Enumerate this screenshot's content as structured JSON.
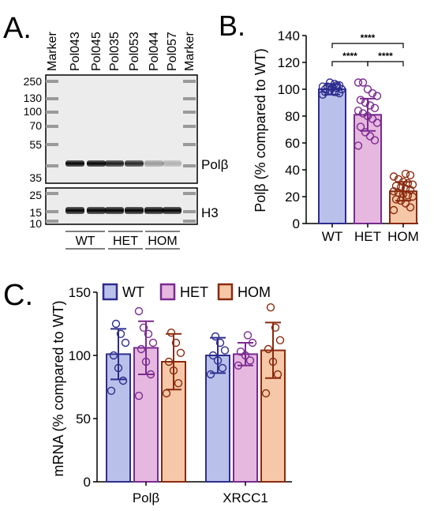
{
  "panels": {
    "a": {
      "label": "A.",
      "lanes": [
        "Marker",
        "Pol043",
        "Pol045",
        "Pol035",
        "Pol053",
        "Pol044",
        "Pol057",
        "Marker"
      ],
      "upper_ticks": [
        "250",
        "130",
        "100",
        "70",
        "55",
        "35"
      ],
      "lower_ticks": [
        "25",
        "15",
        "10"
      ],
      "upper_band_label": "Polβ",
      "lower_band_label": "H3",
      "groups": [
        "WT",
        "HET",
        "HOM"
      ],
      "polb_band_intensity": [
        1.0,
        1.0,
        0.9,
        0.85,
        0.35,
        0.25
      ],
      "h3_band_intensity": [
        1.0,
        1.0,
        1.0,
        1.0,
        1.0,
        1.0
      ]
    }
  },
  "chart_data": [
    {
      "panel_label": "B.",
      "type": "bar",
      "categories": [
        "WT",
        "HET",
        "HOM"
      ],
      "values": [
        100,
        81,
        24
      ],
      "error": [
        4,
        12,
        7
      ],
      "points": [
        [
          96,
          97,
          98,
          99,
          100,
          100,
          101,
          101,
          102,
          102,
          103,
          104,
          105,
          98,
          100,
          103
        ],
        [
          58,
          62,
          65,
          68,
          72,
          75,
          78,
          80,
          82,
          84,
          86,
          88,
          90,
          92,
          95,
          97,
          100,
          105,
          105
        ],
        [
          10,
          12,
          15,
          17,
          18,
          20,
          21,
          22,
          23,
          24,
          25,
          26,
          27,
          28,
          29,
          30,
          31,
          33,
          35,
          36,
          37
        ]
      ],
      "colors": {
        "WT": {
          "fill": "#b9c1ea",
          "stroke": "#2e2d8f"
        },
        "HET": {
          "fill": "#e6b8e0",
          "stroke": "#7a2b8f"
        },
        "HOM": {
          "fill": "#f6c8a8",
          "stroke": "#8a2a0e"
        }
      },
      "ylabel": "Polβ (% compared to WT)",
      "ylim": [
        0,
        140
      ],
      "yticks": [
        "0",
        "20",
        "40",
        "60",
        "80",
        "100",
        "120",
        "140"
      ],
      "significance": [
        {
          "from": "WT",
          "to": "HOM",
          "label": "****"
        },
        {
          "from": "WT",
          "to": "HET",
          "label": "****"
        },
        {
          "from": "HET",
          "to": "HOM",
          "label": "****"
        }
      ]
    },
    {
      "panel_label": "C.",
      "type": "bar",
      "categories": [
        "Polβ",
        "XRCC1"
      ],
      "series": [
        {
          "name": "WT",
          "values": [
            101,
            100
          ],
          "error": [
            20,
            14
          ],
          "points": [
            [
              72,
              80,
              90,
              100,
              110,
              117,
              125
            ],
            [
              85,
              90,
              96,
              100,
              104,
              110,
              115
            ]
          ]
        },
        {
          "name": "HET",
          "values": [
            106,
            101
          ],
          "error": [
            21,
            9
          ],
          "points": [
            [
              68,
              85,
              95,
              105,
              110,
              117,
              122,
              135
            ],
            [
              92,
              96,
              100,
              103,
              110,
              116
            ]
          ]
        },
        {
          "name": "HOM",
          "values": [
            95,
            104
          ],
          "error": [
            22,
            22
          ],
          "points": [
            [
              70,
              78,
              88,
              95,
              102,
              110,
              118
            ],
            [
              70,
              85,
              95,
              105,
              112,
              122,
              138
            ]
          ]
        }
      ],
      "colors": {
        "WT": {
          "fill": "#b9c1ea",
          "stroke": "#2e2d8f"
        },
        "HET": {
          "fill": "#e6b8e0",
          "stroke": "#7a2b8f"
        },
        "HOM": {
          "fill": "#f6c8a8",
          "stroke": "#8a2a0e"
        }
      },
      "ylabel": "mRNA (% compared to WT)",
      "ylim": [
        0,
        150
      ],
      "yticks": [
        "0",
        "50",
        "100",
        "150"
      ],
      "legend_position": "top"
    }
  ]
}
